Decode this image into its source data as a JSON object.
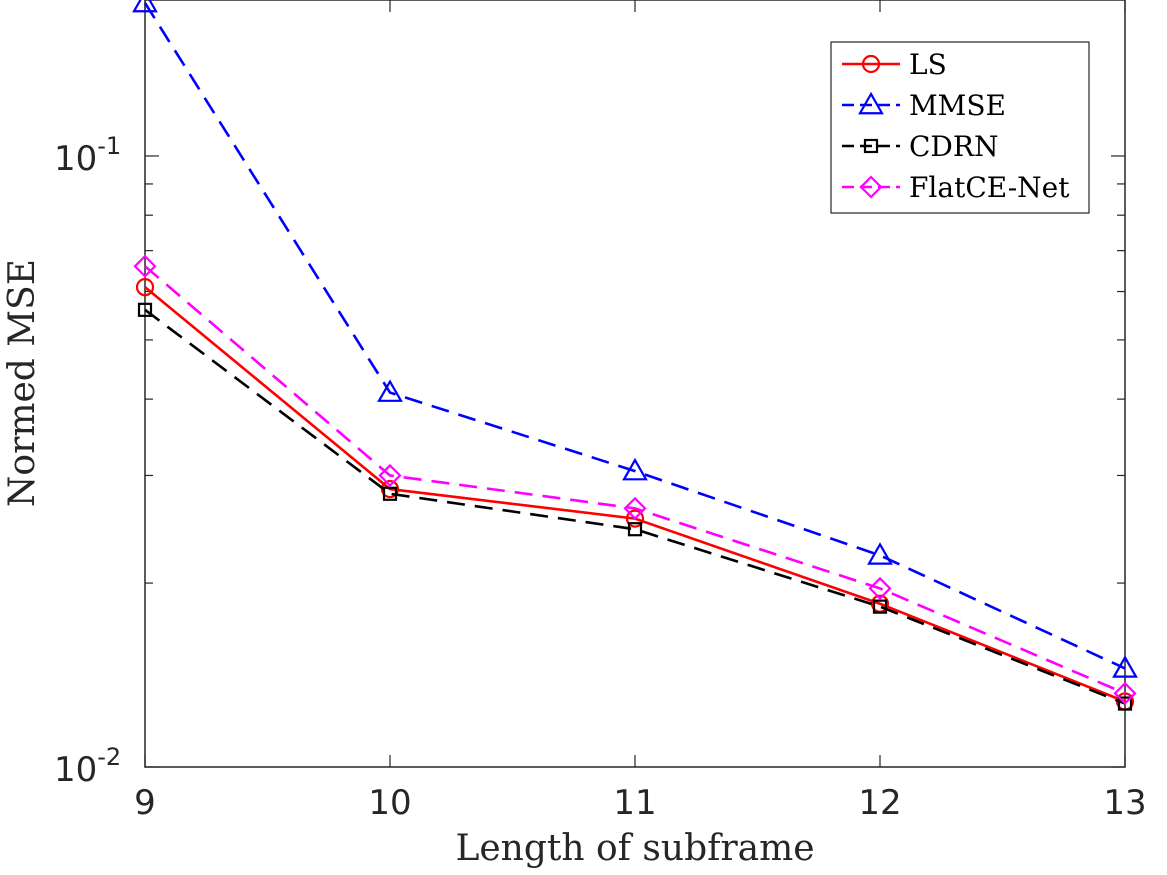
{
  "chart_data": {
    "type": "line",
    "title": "",
    "xlabel": "Length of subframe",
    "ylabel": "Normed MSE",
    "x": [
      9,
      10,
      11,
      12,
      13
    ],
    "xlim": [
      9,
      13
    ],
    "ylim": [
      0.01,
      0.18
    ],
    "yscale": "log",
    "x_tick_labels": [
      "9",
      "10",
      "11",
      "12",
      "13"
    ],
    "y_ticks": [
      {
        "value": 0.1,
        "base": "10",
        "exp": "-1"
      },
      {
        "value": 0.01,
        "base": "10",
        "exp": "-2"
      }
    ],
    "grid": false,
    "legend_position": "top-right",
    "series": [
      {
        "name": "LS",
        "values": [
          0.061,
          0.0285,
          0.0255,
          0.0185,
          0.0128
        ],
        "color": "#ff0000",
        "dash": "solid",
        "marker": "circle"
      },
      {
        "name": "MMSE",
        "values": [
          0.178,
          0.041,
          0.0305,
          0.0222,
          0.0145
        ],
        "color": "#0000ff",
        "dash": "dashed",
        "marker": "triangle"
      },
      {
        "name": "CDRN",
        "values": [
          0.056,
          0.028,
          0.0245,
          0.0183,
          0.0127
        ],
        "color": "#000000",
        "dash": "dashed",
        "marker": "square"
      },
      {
        "name": "FlatCE-Net",
        "values": [
          0.066,
          0.03,
          0.0265,
          0.0196,
          0.0132
        ],
        "color": "#ff00ff",
        "dash": "dashed",
        "marker": "diamond"
      }
    ]
  }
}
